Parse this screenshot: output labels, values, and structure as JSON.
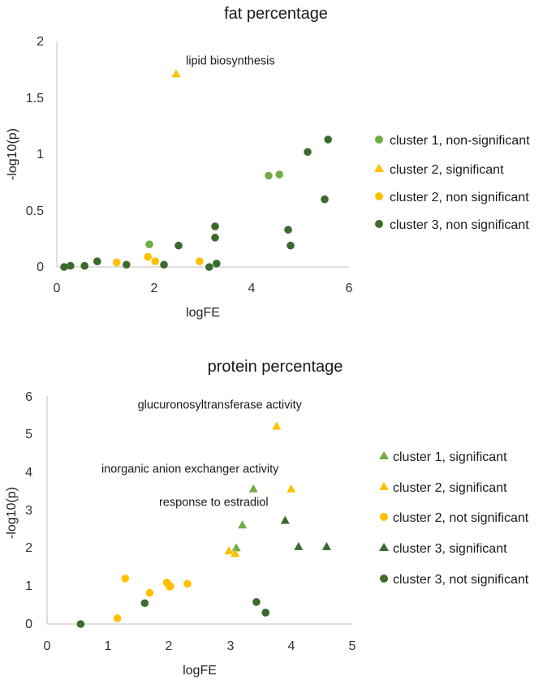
{
  "colors": {
    "cluster1": "#70ad47",
    "cluster2": "#ffc000",
    "cluster3": "#3a6a2c"
  },
  "chart_data": [
    {
      "type": "scatter",
      "title": "fat percentage",
      "xlabel": "logFE",
      "ylabel": "-log10(p)",
      "xlim": [
        0,
        6
      ],
      "ylim": [
        0,
        2
      ],
      "xticks": [
        0,
        2,
        4,
        6
      ],
      "yticks": [
        0,
        0.5,
        1,
        1.5,
        2
      ],
      "ytick_labels": [
        "0",
        "0.5",
        "1",
        "1.5",
        "2"
      ],
      "series": [
        {
          "name": "cluster 1, non-significant",
          "color": "#70ad47",
          "marker": "circle",
          "points": [
            [
              1.9,
              0.2
            ],
            [
              4.35,
              0.81
            ],
            [
              4.57,
              0.82
            ]
          ]
        },
        {
          "name": "cluster 2, significant",
          "color": "#ffc000",
          "marker": "triangle",
          "points": [
            [
              2.45,
              1.71
            ]
          ]
        },
        {
          "name": "cluster 2, non significant",
          "color": "#ffc000",
          "marker": "circle",
          "points": [
            [
              1.23,
              0.04
            ],
            [
              1.87,
              0.09
            ],
            [
              2.02,
              0.05
            ],
            [
              2.93,
              0.05
            ]
          ]
        },
        {
          "name": "cluster 3, non significant",
          "color": "#3a6a2c",
          "marker": "circle",
          "points": [
            [
              0.15,
              0.0
            ],
            [
              0.28,
              0.01
            ],
            [
              0.57,
              0.01
            ],
            [
              0.83,
              0.05
            ],
            [
              1.43,
              0.02
            ],
            [
              2.2,
              0.02
            ],
            [
              2.5,
              0.19
            ],
            [
              3.13,
              0.0
            ],
            [
              3.25,
              0.36
            ],
            [
              3.25,
              0.26
            ],
            [
              3.28,
              0.03
            ],
            [
              4.75,
              0.33
            ],
            [
              4.8,
              0.19
            ],
            [
              5.15,
              1.02
            ],
            [
              5.5,
              0.6
            ],
            [
              5.57,
              1.13
            ]
          ]
        }
      ],
      "annotations": [
        {
          "text": "lipid biosynthesis",
          "x": 2.45,
          "y": 1.71
        }
      ]
    },
    {
      "type": "scatter",
      "title": "protein percentage",
      "xlabel": "logFE",
      "ylabel": "-log10(p)",
      "xlim": [
        0,
        5
      ],
      "ylim": [
        0,
        6
      ],
      "xticks": [
        0,
        1,
        2,
        3,
        4,
        5
      ],
      "yticks": [
        0,
        1,
        2,
        3,
        4,
        5,
        6
      ],
      "ytick_labels": [
        "0",
        "1",
        "2",
        "3",
        "4",
        "5",
        "6"
      ],
      "series": [
        {
          "name": "cluster 1, significant",
          "color": "#70ad47",
          "marker": "triangle",
          "points": [
            [
              3.1,
              2.0
            ],
            [
              3.2,
              2.6
            ],
            [
              3.38,
              3.55
            ]
          ]
        },
        {
          "name": "cluster 2, significant",
          "color": "#ffc000",
          "marker": "triangle",
          "points": [
            [
              2.98,
              1.92
            ],
            [
              3.08,
              1.85
            ],
            [
              3.76,
              5.2
            ],
            [
              4.0,
              3.55
            ]
          ]
        },
        {
          "name": "cluster 2, not significant",
          "color": "#ffc000",
          "marker": "circle",
          "points": [
            [
              1.15,
              0.15
            ],
            [
              1.28,
              1.2
            ],
            [
              1.68,
              0.82
            ],
            [
              1.96,
              1.09
            ],
            [
              2.01,
              0.98
            ],
            [
              2.02,
              1.0
            ],
            [
              2.3,
              1.06
            ]
          ]
        },
        {
          "name": "cluster 3, significant",
          "color": "#3a6a2c",
          "marker": "triangle",
          "points": [
            [
              3.9,
              2.72
            ],
            [
              4.12,
              2.03
            ],
            [
              4.58,
              2.03
            ]
          ]
        },
        {
          "name": "cluster 3, not significant",
          "color": "#3a6a2c",
          "marker": "circle",
          "points": [
            [
              0.55,
              0.0
            ],
            [
              1.6,
              0.55
            ],
            [
              3.43,
              0.58
            ],
            [
              3.58,
              0.3
            ]
          ]
        }
      ],
      "annotations": [
        {
          "text": "glucuronosyltransferase activity",
          "x": 3.76,
          "y": 5.2
        },
        {
          "text": "inorganic anion exchanger activity",
          "x": 3.38,
          "y": 3.55
        },
        {
          "text": "response to estradiol",
          "x": 3.9,
          "y": 2.72
        }
      ]
    }
  ]
}
